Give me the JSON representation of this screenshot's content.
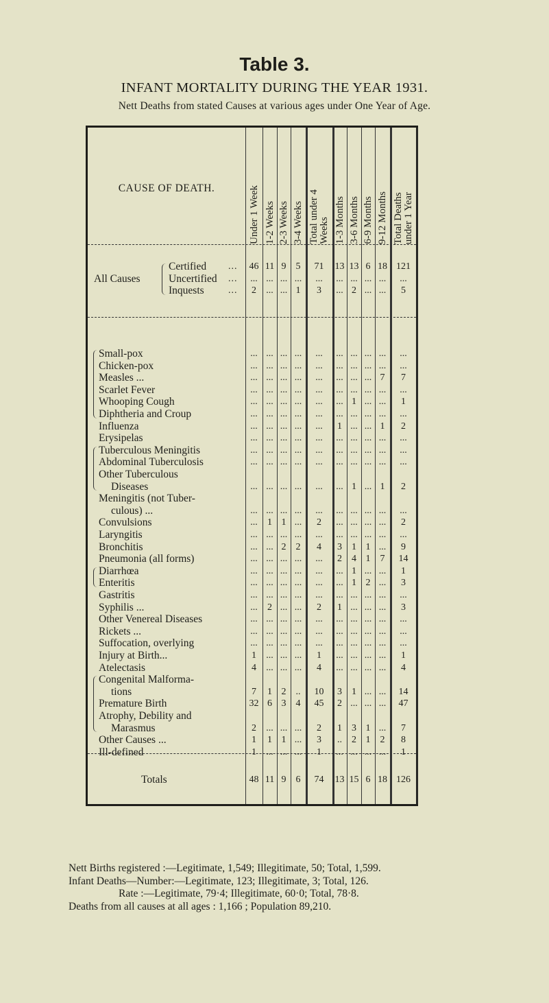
{
  "heading": "Table 3.",
  "title": "INFANT MORTALITY DURING THE YEAR 1931.",
  "subtitle": "Nett Deaths from stated Causes at various ages under One Year of Age.",
  "table": {
    "cause_header": "CAUSE OF DEATH.",
    "columns": [
      "Under 1 Week",
      "1-2 Weeks",
      "2-3 Weeks",
      "3-4 Weeks",
      "Total under 4\nWeeks",
      "1-3 Months",
      "3-6 Months",
      "6-9 Months",
      "9-12 Months",
      "Total Deaths\nunder 1 Year"
    ],
    "all_causes_label": "All Causes",
    "all_causes": [
      {
        "label": "Certified",
        "values": [
          "46",
          "11",
          "9",
          "5",
          "71",
          "13",
          "13",
          "6",
          "18",
          "121"
        ]
      },
      {
        "label": "Uncertified",
        "values": [
          "...",
          "...",
          "...",
          "...",
          "...",
          "...",
          "...",
          "...",
          "...",
          "..."
        ]
      },
      {
        "label": "Inquests",
        "values": [
          "2",
          "...",
          "...",
          "1",
          "3",
          "...",
          "2",
          "...",
          "...",
          "5"
        ]
      }
    ],
    "rows": [
      {
        "label": [
          "Small-pox"
        ],
        "values": [
          "...",
          "...",
          "...",
          "...",
          "...",
          "...",
          "...",
          "...",
          "...",
          "..."
        ]
      },
      {
        "label": [
          "Chicken-pox"
        ],
        "values": [
          "...",
          "...",
          "...",
          "...",
          "...",
          "...",
          "...",
          "...",
          "...",
          "..."
        ]
      },
      {
        "label": [
          "Measles ..."
        ],
        "values": [
          "...",
          "...",
          "...",
          "...",
          "...",
          "...",
          "...",
          "...",
          "7",
          "7"
        ]
      },
      {
        "label": [
          "Scarlet Fever"
        ],
        "values": [
          "...",
          "...",
          "...",
          "...",
          "...",
          "...",
          "...",
          "...",
          "...",
          "..."
        ]
      },
      {
        "label": [
          "Whooping Cough"
        ],
        "values": [
          "...",
          "...",
          "...",
          "...",
          "...",
          "...",
          "1",
          "...",
          "...",
          "1"
        ]
      },
      {
        "label": [
          "Diphtheria and Croup"
        ],
        "values": [
          "...",
          "...",
          "...",
          "...",
          "...",
          "...",
          "...",
          "...",
          "...",
          "..."
        ]
      },
      {
        "label": [
          "Influenza"
        ],
        "values": [
          "...",
          "...",
          "...",
          "...",
          "...",
          "1",
          "...",
          "...",
          "1",
          "2"
        ]
      },
      {
        "label": [
          "Erysipelas"
        ],
        "values": [
          "...",
          "...",
          "...",
          "...",
          "...",
          "...",
          "...",
          "...",
          "...",
          "..."
        ]
      },
      {
        "label": [
          "Tuberculous Meningitis"
        ],
        "values": [
          "...",
          "...",
          "...",
          "...",
          "...",
          "...",
          "...",
          "...",
          "...",
          "..."
        ]
      },
      {
        "label": [
          "Abdominal Tuberculosis"
        ],
        "values": [
          "...",
          "...",
          "...",
          "...",
          "...",
          "...",
          "...",
          "...",
          "...",
          "..."
        ]
      },
      {
        "label": [
          "Other Tuberculous",
          "Diseases"
        ],
        "values": [
          "...",
          "...",
          "...",
          "...",
          "...",
          "...",
          "1",
          "...",
          "1",
          "2"
        ]
      },
      {
        "label": [
          "Meningitis (not Tuber-",
          "culous) ..."
        ],
        "values": [
          "...",
          "...",
          "...",
          "...",
          "...",
          "...",
          "...",
          "...",
          "...",
          "..."
        ]
      },
      {
        "label": [
          "Convulsions"
        ],
        "values": [
          "...",
          "1",
          "1",
          "...",
          "2",
          "...",
          "...",
          "...",
          "...",
          "2"
        ]
      },
      {
        "label": [
          "Laryngitis"
        ],
        "values": [
          "...",
          "...",
          "...",
          "...",
          "...",
          "...",
          "...",
          "...",
          "...",
          "..."
        ]
      },
      {
        "label": [
          "Bronchitis"
        ],
        "values": [
          "...",
          "...",
          "2",
          "2",
          "4",
          "3",
          "1",
          "1",
          "...",
          "9"
        ]
      },
      {
        "label": [
          "Pneumonia (all forms)"
        ],
        "values": [
          "...",
          "...",
          "...",
          "...",
          "...",
          "2",
          "4",
          "1",
          "7",
          "14"
        ]
      },
      {
        "label": [
          "Diarrhœa"
        ],
        "values": [
          "...",
          "...",
          "...",
          "...",
          "...",
          "...",
          "1",
          "...",
          "...",
          "1"
        ]
      },
      {
        "label": [
          "Enteritis"
        ],
        "values": [
          "...",
          "...",
          "...",
          "...",
          "...",
          "...",
          "1",
          "2",
          "...",
          "3"
        ]
      },
      {
        "label": [
          "Gastritis"
        ],
        "values": [
          "...",
          "...",
          "...",
          "...",
          "...",
          "...",
          "...",
          "...",
          "...",
          "..."
        ]
      },
      {
        "label": [
          "Syphilis ..."
        ],
        "values": [
          "...",
          "2",
          "...",
          "...",
          "2",
          "1",
          "...",
          "...",
          "...",
          "3"
        ]
      },
      {
        "label": [
          "Other Venereal Diseases"
        ],
        "values": [
          "...",
          "...",
          "...",
          "...",
          "...",
          "...",
          "...",
          "...",
          "...",
          "..."
        ]
      },
      {
        "label": [
          "Rickets ..."
        ],
        "values": [
          "...",
          "...",
          "...",
          "...",
          "...",
          "...",
          "...",
          "...",
          "...",
          "..."
        ]
      },
      {
        "label": [
          "Suffocation, overlying"
        ],
        "values": [
          "...",
          "...",
          "...",
          "...",
          "...",
          "...",
          "...",
          "...",
          "...",
          "..."
        ]
      },
      {
        "label": [
          "Injury at Birth..."
        ],
        "values": [
          "1",
          "...",
          "...",
          "...",
          "1",
          "...",
          "...",
          "...",
          "...",
          "1"
        ]
      },
      {
        "label": [
          "Atelectasis"
        ],
        "values": [
          "4",
          "...",
          "...",
          "...",
          "4",
          "...",
          "...",
          "...",
          "...",
          "4"
        ]
      },
      {
        "label": [
          "Congenital Malforma-",
          "tions"
        ],
        "values": [
          "7",
          "1",
          "2",
          "..",
          "10",
          "3",
          "1",
          "...",
          "...",
          "14"
        ]
      },
      {
        "label": [
          "Premature Birth"
        ],
        "values": [
          "32",
          "6",
          "3",
          "4",
          "45",
          "2",
          "...",
          "...",
          "...",
          "47"
        ]
      },
      {
        "label": [
          "Atrophy, Debility and",
          "Marasmus"
        ],
        "values": [
          "2",
          "...",
          "...",
          "...",
          "2",
          "1",
          "3",
          "1",
          "...",
          "7"
        ]
      },
      {
        "label": [
          "Other Causes ..."
        ],
        "values": [
          "1",
          "1",
          "1",
          "...",
          "3",
          "..",
          "2",
          "1",
          "2",
          "8"
        ]
      },
      {
        "label": [
          "Ill-defined"
        ],
        "values": [
          "1",
          "...",
          "...",
          "...",
          "1",
          "...",
          "...",
          "...",
          "...",
          "1"
        ]
      }
    ],
    "totals": {
      "label": "Totals",
      "values": [
        "48",
        "11",
        "9",
        "6",
        "74",
        "13",
        "15",
        "6",
        "18",
        "126"
      ]
    }
  },
  "footer": [
    "Nett Births registered :—Legitimate, 1,549; Illegitimate, 50; Total, 1,599.",
    "Infant Deaths—Number:—Legitimate, 123; Illegitimate, 3; Total, 126.",
    "Rate :—Legitimate, 79·4; Illegitimate, 60·0; Total, 78·8.",
    "Deaths from all causes at all ages : 1,166 ; Population 89,210."
  ]
}
